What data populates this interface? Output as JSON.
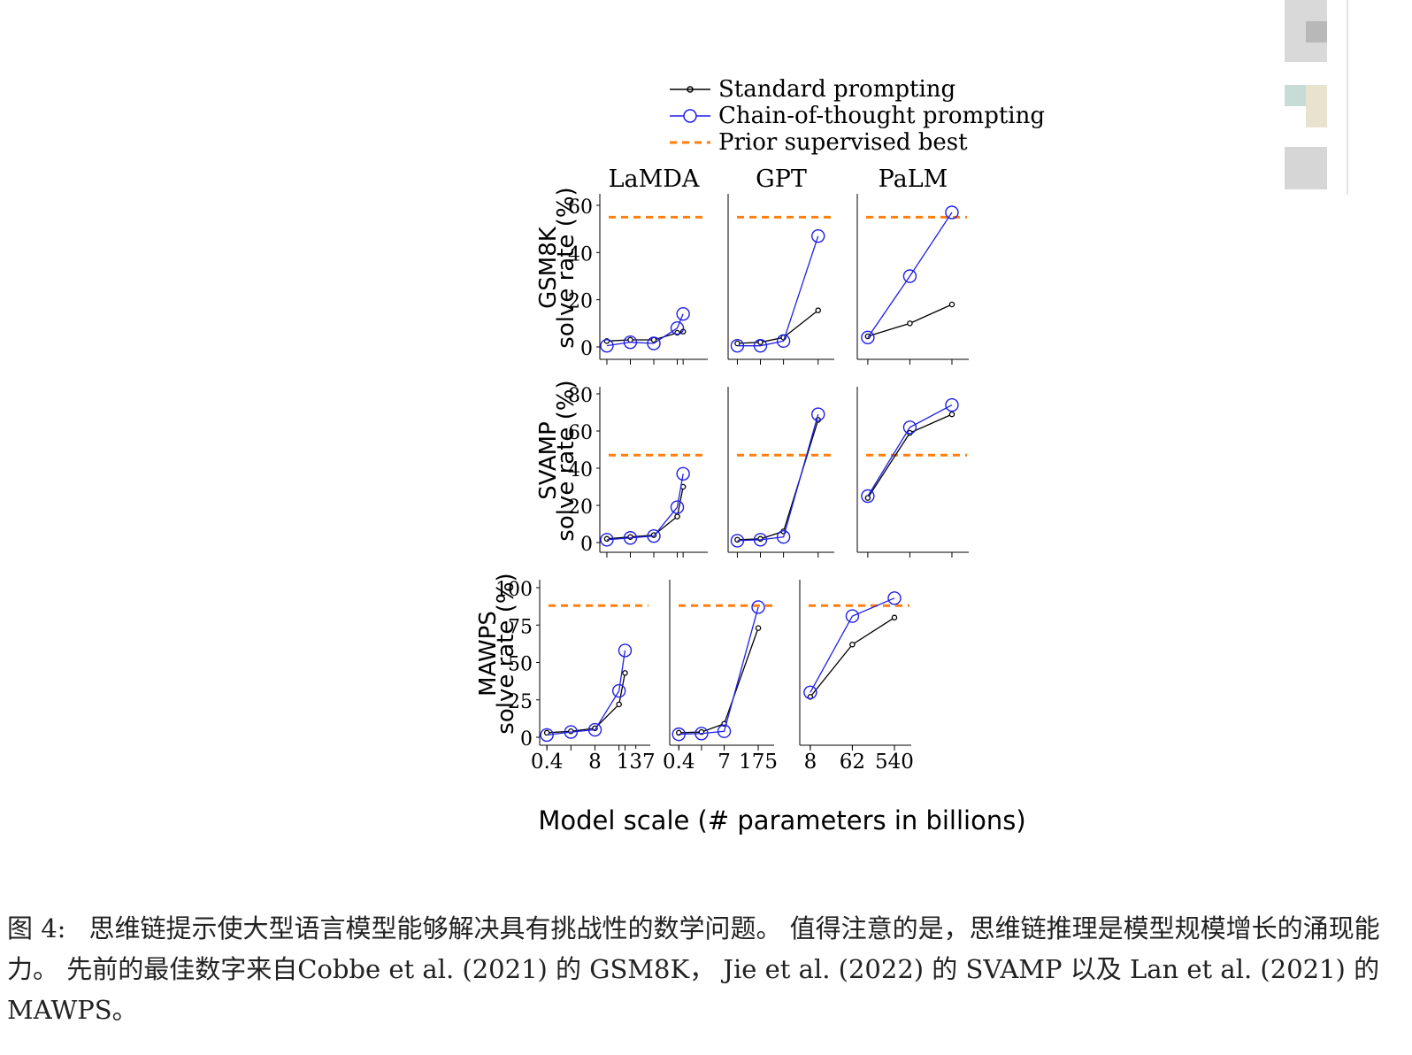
{
  "legend": {
    "standard": "Standard prompting",
    "cot": "Chain-of-thought prompting",
    "prior": "Prior supervised best"
  },
  "x_axis_label": "Model scale (# parameters in billions)",
  "caption": {
    "label": "图 4:",
    "text": "思维链提示使大型语言模型能够解决具有挑战性的数学问题。 值得注意的是，思维链推理是模型规模增长的涌现能力。 先前的最佳数字来自Cobbe et al. (2021) 的 GSM8K， Jie et al. (2022) 的 SVAMP 以及 Lan et al. (2021) 的 MAWPS。"
  },
  "colors": {
    "standard": "#000000",
    "cot": "#1f1fe6",
    "prior": "#ff7f0e",
    "axis": "#000000"
  },
  "chart_data": [
    {
      "type": "line",
      "row": "GSM8K",
      "model": "LaMDA",
      "title": "LaMDA",
      "ylabel": "GSM8K\nsolve rate (%)",
      "ylim": [
        0,
        60
      ],
      "yticks": [
        0,
        20,
        40,
        60
      ],
      "x": [
        0,
        1,
        2,
        3,
        3.25
      ],
      "xlim": [
        -0.3,
        4.3
      ],
      "xticks": [],
      "series": [
        {
          "name": "Standard prompting",
          "values": [
            2.5,
            3,
            3,
            6,
            6.5
          ]
        },
        {
          "name": "Chain-of-thought prompting",
          "values": [
            0.5,
            2,
            1.5,
            8,
            14
          ]
        }
      ],
      "prior_best": 55
    },
    {
      "type": "line",
      "row": "GSM8K",
      "model": "GPT",
      "title": "GPT",
      "ylim": [
        0,
        60
      ],
      "yticks": [],
      "x": [
        0,
        1,
        2,
        3.5
      ],
      "xlim": [
        -0.4,
        4.2
      ],
      "xticks": [],
      "series": [
        {
          "name": "Standard prompting",
          "values": [
            1.5,
            2,
            4,
            15.5
          ]
        },
        {
          "name": "Chain-of-thought prompting",
          "values": [
            0.5,
            0.5,
            2.5,
            47
          ]
        }
      ],
      "prior_best": 55
    },
    {
      "type": "line",
      "row": "GSM8K",
      "model": "PaLM",
      "title": "PaLM",
      "ylim": [
        0,
        60
      ],
      "yticks": [],
      "x": [
        0,
        1,
        2
      ],
      "xlim": [
        -0.25,
        2.4
      ],
      "xticks": [],
      "series": [
        {
          "name": "Standard prompting",
          "values": [
            4.5,
            10,
            18
          ]
        },
        {
          "name": "Chain-of-thought prompting",
          "values": [
            4,
            30,
            57
          ]
        }
      ],
      "prior_best": 55
    },
    {
      "type": "line",
      "row": "SVAMP",
      "model": "LaMDA",
      "ylabel": "SVAMP\nsolve rate (%)",
      "ylim": [
        0,
        80
      ],
      "yticks": [
        0,
        20,
        40,
        60,
        80
      ],
      "x": [
        0,
        1,
        2,
        3,
        3.25
      ],
      "xlim": [
        -0.3,
        4.3
      ],
      "xticks": [],
      "series": [
        {
          "name": "Standard prompting",
          "values": [
            2,
            3,
            4,
            14,
            30
          ]
        },
        {
          "name": "Chain-of-thought prompting",
          "values": [
            1.5,
            2.5,
            3.5,
            19,
            37
          ]
        }
      ],
      "prior_best": 47
    },
    {
      "type": "line",
      "row": "SVAMP",
      "model": "GPT",
      "ylim": [
        0,
        80
      ],
      "yticks": [],
      "x": [
        0,
        1,
        2,
        3.5
      ],
      "xlim": [
        -0.4,
        4.2
      ],
      "xticks": [],
      "series": [
        {
          "name": "Standard prompting",
          "values": [
            1.5,
            2,
            6,
            66
          ]
        },
        {
          "name": "Chain-of-thought prompting",
          "values": [
            1,
            1.5,
            3,
            69
          ]
        }
      ],
      "prior_best": 47
    },
    {
      "type": "line",
      "row": "SVAMP",
      "model": "PaLM",
      "ylim": [
        0,
        80
      ],
      "yticks": [],
      "x": [
        0,
        1,
        2
      ],
      "xlim": [
        -0.25,
        2.4
      ],
      "xticks": [],
      "series": [
        {
          "name": "Standard prompting",
          "values": [
            24,
            59,
            69
          ]
        },
        {
          "name": "Chain-of-thought prompting",
          "values": [
            25,
            62,
            74
          ]
        }
      ],
      "prior_best": 47
    },
    {
      "type": "line",
      "row": "MAWPS",
      "model": "LaMDA",
      "ylabel": "MAWPS\nsolve rate (%)",
      "ylim": [
        0,
        100
      ],
      "yticks": [
        0,
        25,
        50,
        75,
        100
      ],
      "x": [
        0,
        1,
        2,
        3,
        3.25
      ],
      "xlim": [
        -0.3,
        4.3
      ],
      "xticks": [
        {
          "pos": 0,
          "label": "0.4"
        },
        {
          "pos": 2,
          "label": "8"
        },
        {
          "pos": 3.7,
          "label": "137"
        }
      ],
      "series": [
        {
          "name": "Standard prompting",
          "values": [
            3,
            4,
            6,
            22,
            43
          ]
        },
        {
          "name": "Chain-of-thought prompting",
          "values": [
            1.5,
            3.5,
            5,
            31,
            58
          ]
        }
      ],
      "prior_best": 88
    },
    {
      "type": "line",
      "row": "MAWPS",
      "model": "GPT",
      "ylim": [
        0,
        100
      ],
      "yticks": [],
      "x": [
        0,
        1,
        2,
        3.5
      ],
      "xlim": [
        -0.4,
        4.2
      ],
      "xticks": [
        {
          "pos": 0,
          "label": "0.4"
        },
        {
          "pos": 2,
          "label": "7"
        },
        {
          "pos": 3.5,
          "label": "175"
        }
      ],
      "series": [
        {
          "name": "Standard prompting",
          "values": [
            3,
            3.5,
            9,
            73
          ]
        },
        {
          "name": "Chain-of-thought prompting",
          "values": [
            2,
            2.5,
            4,
            87
          ]
        }
      ],
      "prior_best": 88
    },
    {
      "type": "line",
      "row": "MAWPS",
      "model": "PaLM",
      "ylim": [
        0,
        100
      ],
      "yticks": [],
      "x": [
        0,
        1,
        2
      ],
      "xlim": [
        -0.25,
        2.4
      ],
      "xticks": [
        {
          "pos": 0,
          "label": "8"
        },
        {
          "pos": 1,
          "label": "62"
        },
        {
          "pos": 2,
          "label": "540"
        }
      ],
      "series": [
        {
          "name": "Standard prompting",
          "values": [
            27,
            62,
            80
          ]
        },
        {
          "name": "Chain-of-thought prompting",
          "values": [
            30,
            81,
            93
          ]
        }
      ],
      "prior_best": 88
    }
  ]
}
